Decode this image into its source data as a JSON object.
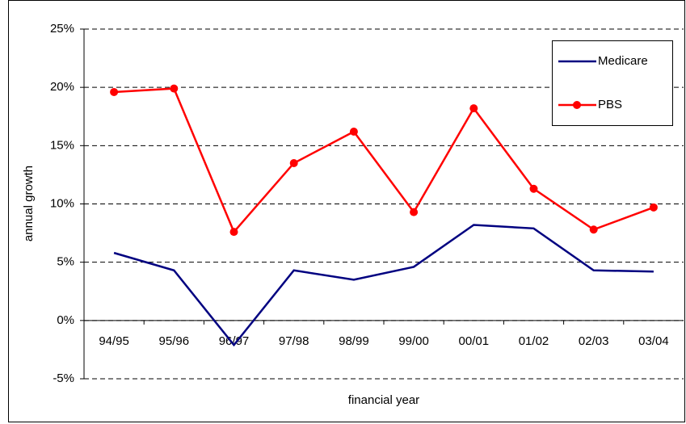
{
  "chart_data": {
    "type": "line",
    "x_label": "financial year",
    "y_label": "annual growth",
    "categories": [
      "94/95",
      "95/96",
      "96/97",
      "97/98",
      "98/99",
      "99/00",
      "00/01",
      "01/02",
      "02/03",
      "03/04"
    ],
    "series": [
      {
        "name": "Medicare",
        "color": "#000080",
        "marker": false,
        "values": [
          5.8,
          4.3,
          -2.1,
          4.3,
          3.5,
          4.6,
          8.2,
          7.9,
          4.3,
          4.2
        ]
      },
      {
        "name": "PBS",
        "color": "#ff0000",
        "marker": true,
        "values": [
          19.6,
          19.9,
          7.6,
          13.5,
          16.2,
          9.3,
          18.2,
          11.3,
          7.8,
          9.7
        ]
      }
    ],
    "ylim": [
      -5,
      25
    ],
    "yticks": [
      {
        "value": -5,
        "label": "-5%"
      },
      {
        "value": 0,
        "label": "0%"
      },
      {
        "value": 5,
        "label": "5%"
      },
      {
        "value": 10,
        "label": "10%"
      },
      {
        "value": 15,
        "label": "15%"
      },
      {
        "value": 20,
        "label": "20%"
      },
      {
        "value": 25,
        "label": "25%"
      }
    ],
    "grid": true,
    "legend": "top-right"
  }
}
